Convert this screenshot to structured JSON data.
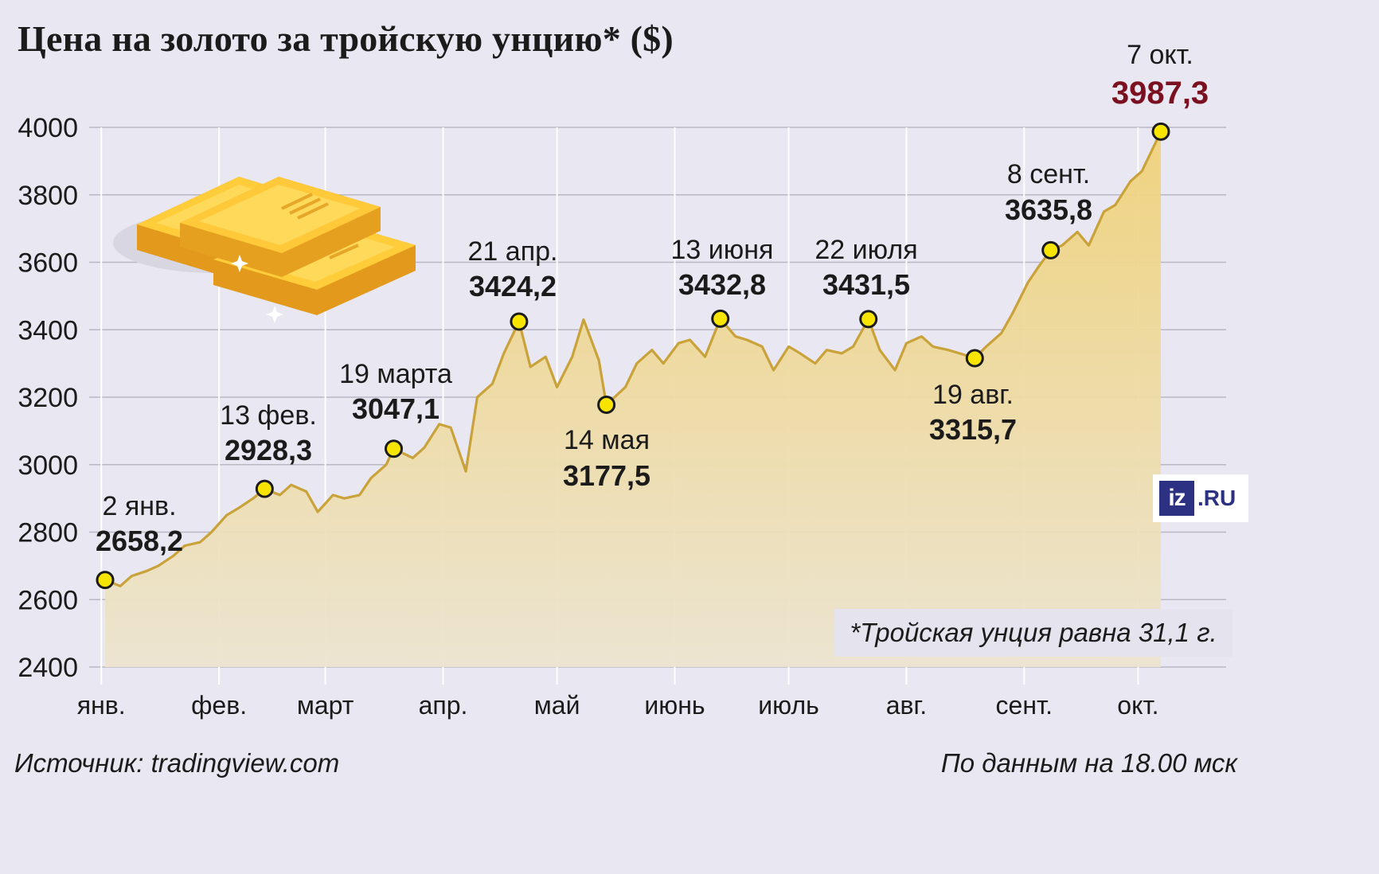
{
  "title": "Цена на золото за тройскую унцию* ($)",
  "source": "Источник: tradingview.com",
  "as_of": "По данным на 18.00 мск",
  "footnote": "*Тройская унция равна 31,1 г.",
  "logo": {
    "mark": "iz",
    "suffix": ".RU"
  },
  "colors": {
    "background": "#e9e7f1",
    "line": "#c9a23a",
    "area_top": "#f0d27a",
    "area_bottom": "#ece4cf",
    "marker": "#f7e400",
    "highlight_value": "#7a1020",
    "text": "#1b1b1b",
    "logo": "#2d3182"
  },
  "illustration": {
    "icon": "gold-bars-icon"
  },
  "chart_data": {
    "type": "area",
    "title": "Цена на золото за тройскую унцию* ($)",
    "ylim": [
      2400,
      4000
    ],
    "yticks": [
      2400,
      2600,
      2800,
      3000,
      3200,
      3400,
      3600,
      3800,
      4000
    ],
    "grid": true,
    "months": [
      "янв.",
      "фев.",
      "март",
      "апр.",
      "май",
      "июнь",
      "июль",
      "авг.",
      "сент.",
      "окт."
    ],
    "series": [
      {
        "x": [
          "2025-01-02",
          "2025-01-06",
          "2025-01-09",
          "2025-01-13",
          "2025-01-16",
          "2025-01-20",
          "2025-01-23",
          "2025-01-27",
          "2025-01-30",
          "2025-02-03",
          "2025-02-06",
          "2025-02-10",
          "2025-02-13",
          "2025-02-17",
          "2025-02-20",
          "2025-02-24",
          "2025-02-27",
          "2025-03-03",
          "2025-03-06",
          "2025-03-10",
          "2025-03-13",
          "2025-03-17",
          "2025-03-19",
          "2025-03-24",
          "2025-03-27",
          "2025-03-31",
          "2025-04-03",
          "2025-04-07",
          "2025-04-10",
          "2025-04-14",
          "2025-04-17",
          "2025-04-21",
          "2025-04-24",
          "2025-04-28",
          "2025-05-01",
          "2025-05-05",
          "2025-05-08",
          "2025-05-12",
          "2025-05-14",
          "2025-05-19",
          "2025-05-22",
          "2025-05-26",
          "2025-05-29",
          "2025-06-02",
          "2025-06-05",
          "2025-06-09",
          "2025-06-13",
          "2025-06-17",
          "2025-06-20",
          "2025-06-24",
          "2025-06-27",
          "2025-07-01",
          "2025-07-04",
          "2025-07-08",
          "2025-07-11",
          "2025-07-15",
          "2025-07-18",
          "2025-07-22",
          "2025-07-25",
          "2025-07-29",
          "2025-08-01",
          "2025-08-05",
          "2025-08-08",
          "2025-08-12",
          "2025-08-15",
          "2025-08-19",
          "2025-08-22",
          "2025-08-26",
          "2025-08-29",
          "2025-09-02",
          "2025-09-05",
          "2025-09-08",
          "2025-09-11",
          "2025-09-15",
          "2025-09-18",
          "2025-09-22",
          "2025-09-25",
          "2025-09-29",
          "2025-10-02",
          "2025-10-07"
        ],
        "y": [
          2658.2,
          2640,
          2670,
          2685,
          2700,
          2730,
          2760,
          2770,
          2800,
          2850,
          2870,
          2900,
          2928.3,
          2910,
          2940,
          2920,
          2860,
          2910,
          2900,
          2910,
          2960,
          3000,
          3047.1,
          3020,
          3050,
          3120,
          3110,
          2980,
          3200,
          3240,
          3330,
          3424.2,
          3290,
          3320,
          3230,
          3320,
          3430,
          3310,
          3177.5,
          3230,
          3300,
          3340,
          3300,
          3360,
          3370,
          3320,
          3432.8,
          3380,
          3370,
          3350,
          3280,
          3350,
          3330,
          3300,
          3340,
          3330,
          3350,
          3431.5,
          3340,
          3280,
          3360,
          3380,
          3350,
          3340,
          3330,
          3315.7,
          3350,
          3390,
          3450,
          3540,
          3590,
          3635.8,
          3650,
          3690,
          3650,
          3750,
          3770,
          3840,
          3870,
          3987.3
        ]
      }
    ],
    "annotations": [
      {
        "date": "2 янв.",
        "value": "2658,2"
      },
      {
        "date": "13 фев.",
        "value": "2928,3"
      },
      {
        "date": "19 марта",
        "value": "3047,1"
      },
      {
        "date": "21 апр.",
        "value": "3424,2"
      },
      {
        "date": "14 мая",
        "value": "3177,5"
      },
      {
        "date": "13 июня",
        "value": "3432,8"
      },
      {
        "date": "22 июля",
        "value": "3431,5"
      },
      {
        "date": "19 авг.",
        "value": "3315,7"
      },
      {
        "date": "8 сент.",
        "value": "3635,8"
      },
      {
        "date": "7 окт.",
        "value": "3987,3"
      }
    ]
  }
}
